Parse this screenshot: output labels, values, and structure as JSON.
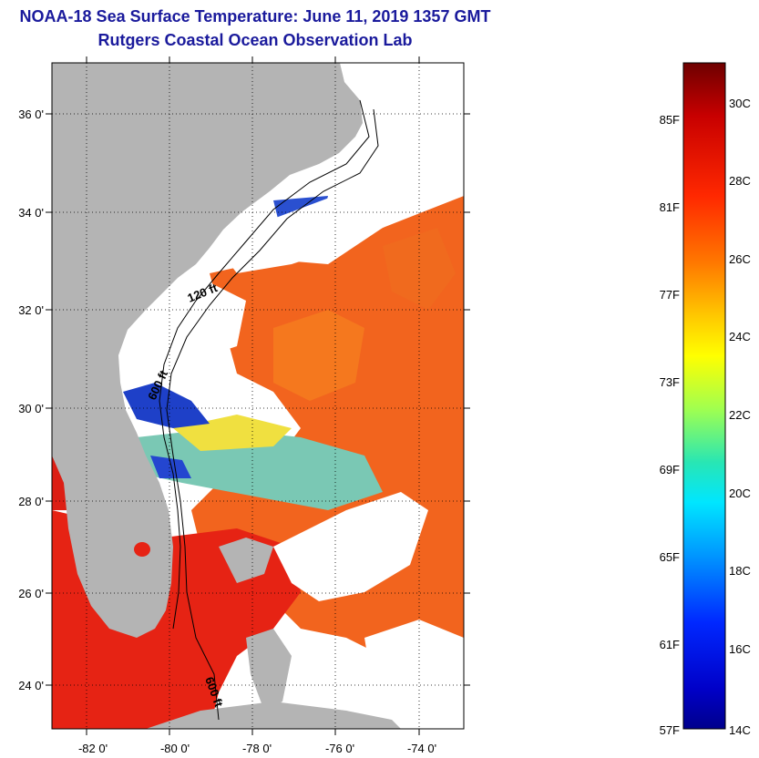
{
  "header": {
    "title": "NOAA-18 Sea Surface Temperature:  June 11, 2019 1357 GMT",
    "subtitle": "Rutgers Coastal Ocean Observation Lab"
  },
  "map": {
    "lat_labels": [
      "36 0'",
      "34 0'",
      "32 0'",
      "30 0'",
      "28 0'",
      "26 0'",
      "24 0'"
    ],
    "lon_labels": [
      "-82 0'",
      "-80 0'",
      "-78 0'",
      "-76 0'",
      "-74 0'"
    ],
    "contour_labels": [
      "120 ft",
      "600 ft",
      "600 ft"
    ],
    "colors": {
      "land": "#b4b4b4",
      "cloud": "#ffffff",
      "warm_sst": "#f25a14",
      "hot_sst": "#e61e14",
      "cold_sst": "#1e3cc8"
    }
  },
  "colorbar": {
    "f_labels": [
      "85F",
      "81F",
      "77F",
      "73F",
      "69F",
      "65F",
      "61F",
      "57F"
    ],
    "c_labels": [
      "30C",
      "28C",
      "26C",
      "24C",
      "22C",
      "20C",
      "18C",
      "16C",
      "14C"
    ],
    "colors": [
      "#7a0000",
      "#d80000",
      "#ff5a00",
      "#ffb400",
      "#ffff00",
      "#8cff5a",
      "#00e6e6",
      "#0096ff",
      "#0032ff",
      "#00008c"
    ]
  }
}
